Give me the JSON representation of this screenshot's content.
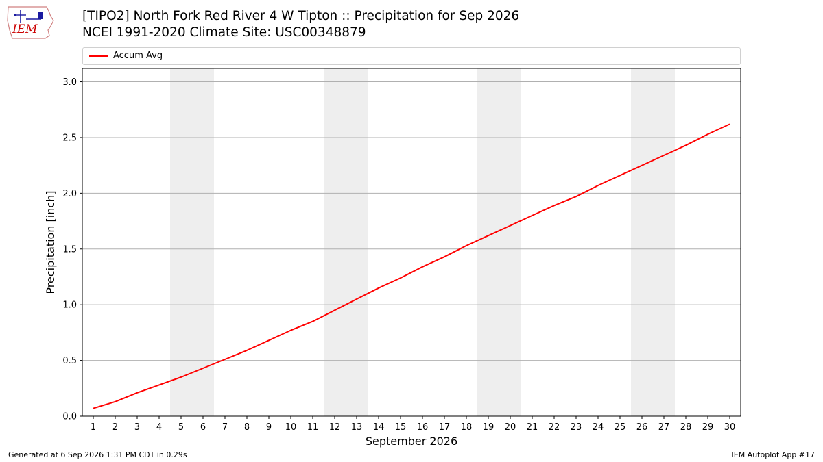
{
  "header": {
    "title_line1": "[TIPO2] North Fork Red River 4 W Tipton :: Precipitation for Sep 2026",
    "title_line2": "NCEI 1991-2020 Climate Site: USC00348879"
  },
  "logo": {
    "text": "IEM",
    "color": "#cc0000"
  },
  "footer": {
    "generated": "Generated at 6 Sep 2026 1:31 PM CDT in 0.29s",
    "app": "IEM Autoplot App #17"
  },
  "chart_data": {
    "type": "line",
    "xlabel": "September 2026",
    "ylabel": "Precipitation [inch]",
    "x": [
      1,
      2,
      3,
      4,
      5,
      6,
      7,
      8,
      9,
      10,
      11,
      12,
      13,
      14,
      15,
      16,
      17,
      18,
      19,
      20,
      21,
      22,
      23,
      24,
      25,
      26,
      27,
      28,
      29,
      30
    ],
    "xlim": [
      0.5,
      30.5
    ],
    "ylim": [
      0,
      3.12
    ],
    "yticks": [
      0.0,
      0.5,
      1.0,
      1.5,
      2.0,
      2.5,
      3.0
    ],
    "ytick_labels": [
      "0.0",
      "0.5",
      "1.0",
      "1.5",
      "2.0",
      "2.5",
      "3.0"
    ],
    "grid": "y",
    "weekend_bands": [
      [
        5,
        6
      ],
      [
        12,
        13
      ],
      [
        19,
        20
      ],
      [
        26,
        27
      ]
    ],
    "legend": "top",
    "series": [
      {
        "name": "Accum Avg",
        "color": "#ff0000",
        "values": [
          0.07,
          0.13,
          0.21,
          0.28,
          0.35,
          0.43,
          0.51,
          0.59,
          0.68,
          0.77,
          0.85,
          0.95,
          1.05,
          1.15,
          1.24,
          1.34,
          1.43,
          1.53,
          1.62,
          1.71,
          1.8,
          1.89,
          1.97,
          2.07,
          2.16,
          2.25,
          2.34,
          2.43,
          2.53,
          2.62
        ]
      }
    ]
  }
}
